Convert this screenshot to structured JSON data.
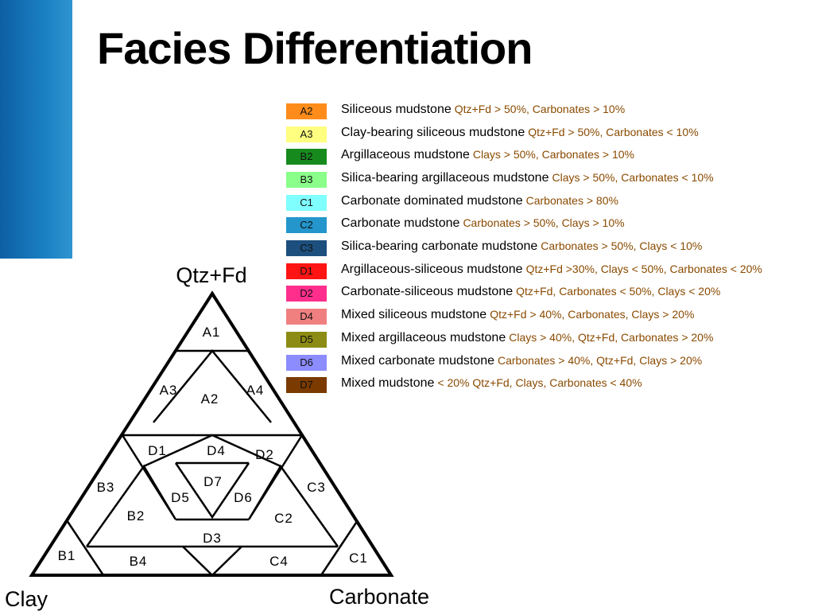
{
  "slide": {
    "title": "Facies Differentiation"
  },
  "legend": [
    {
      "code": "A2",
      "color": "#ff8c1a",
      "name": "Siliceous mudstone",
      "criteria": "Qtz+Fd > 50%, Carbonates > 10%"
    },
    {
      "code": "A3",
      "color": "#ffff80",
      "name": "Clay-bearing siliceous mudstone",
      "criteria": "Qtz+Fd > 50%, Carbonates < 10%"
    },
    {
      "code": "B2",
      "color": "#178a1e",
      "name": "Argillaceous mudstone",
      "criteria": "Clays > 50%, Carbonates > 10%"
    },
    {
      "code": "B3",
      "color": "#8aff8a",
      "name": "Silica-bearing argillaceous mudstone",
      "criteria": "Clays > 50%, Carbonates < 10%"
    },
    {
      "code": "C1",
      "color": "#80ffff",
      "name": "Carbonate dominated mudstone",
      "criteria": "Carbonates > 80%"
    },
    {
      "code": "C2",
      "color": "#2496cc",
      "name": "Carbonate mudstone",
      "criteria": "Carbonates > 50%, Clays > 10%"
    },
    {
      "code": "C3",
      "color": "#1d4f7e",
      "name": "Silica-bearing carbonate mudstone",
      "criteria": "Carbonates > 50%, Clays < 10%"
    },
    {
      "code": "D1",
      "color": "#ff1414",
      "name": "Argillaceous-siliceous mudstone",
      "criteria": "Qtz+Fd >30%, Clays < 50%, Carbonates < 20%"
    },
    {
      "code": "D2",
      "color": "#ff2e8c",
      "name": "Carbonate-siliceous mudstone",
      "criteria": "Qtz+Fd, Carbonates < 50%, Clays < 20%"
    },
    {
      "code": "D4",
      "color": "#f08080",
      "name": "Mixed siliceous mudstone",
      "criteria": "Qtz+Fd > 40%, Carbonates, Clays > 20%"
    },
    {
      "code": "D5",
      "color": "#8c8c14",
      "name": "Mixed argillaceous mudstone",
      "criteria": "Clays > 40%, Qtz+Fd, Carbonates > 20%"
    },
    {
      "code": "D6",
      "color": "#8c8cff",
      "name": "Mixed carbonate mudstone",
      "criteria": "Carbonates > 40%, Qtz+Fd, Clays > 20%"
    },
    {
      "code": "D7",
      "color": "#7a3a00",
      "name": "Mixed mudstone",
      "criteria": "< 20% Qtz+Fd, Clays, Carbonates < 40%"
    }
  ],
  "ternary": {
    "apex_labels": {
      "top": "Qtz+Fd",
      "bottom_left": "Clay",
      "bottom_right": "Carbonate"
    },
    "zones": [
      "A1",
      "A2",
      "A3",
      "A4",
      "B1",
      "B2",
      "B3",
      "B4",
      "C1",
      "C2",
      "C3",
      "C4",
      "D1",
      "D2",
      "D3",
      "D4",
      "D5",
      "D6",
      "D7"
    ]
  },
  "colors": {
    "accent_bar": "#1a7fc2",
    "criteria_text": "#8a4a00"
  }
}
